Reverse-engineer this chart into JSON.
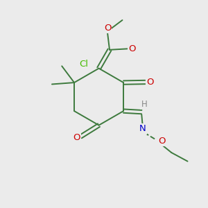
{
  "bg_color": "#ebebeb",
  "bond_color": "#3d7a3d",
  "bond_lw": 1.4,
  "atom_colors": {
    "O": "#cc0000",
    "N": "#0000cc",
    "Cl": "#44bb00",
    "H": "#888888",
    "C": "#3d7a3d"
  },
  "font_size": 9.5,
  "small_font": 8.5
}
